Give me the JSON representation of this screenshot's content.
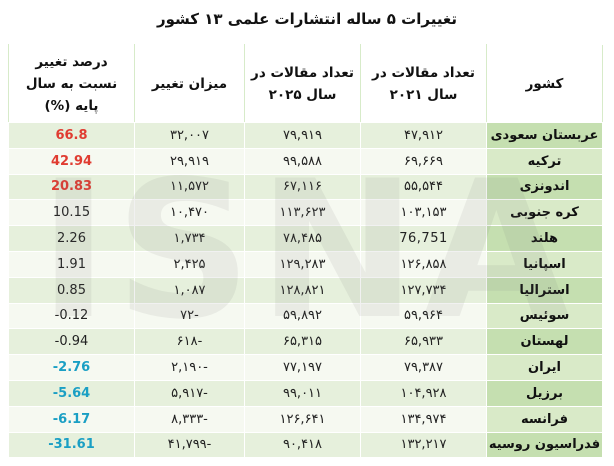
{
  "title": "تغییرات ۵ ساله انتشارات علمی ۱۳ کشور",
  "watermark": "ISNA",
  "headers": {
    "country": "کشور",
    "count_2021": "تعداد مقالات در سال ۲۰۲۱",
    "count_2025": "تعداد مقالات در سال ۲۰۲۵",
    "change": "میزان تغییر",
    "pct": "درصد تغییر نسبت به سال پایه (%)"
  },
  "colors": {
    "pct_positive_high": "#e03c31",
    "pct_negative_high": "#1a9fc4",
    "row_band": "#e6f0dc",
    "country_band": "#c5dfb0"
  },
  "rows": [
    {
      "country": "عربستان سعودی",
      "count_2021": "۴۷,۹۱۲",
      "count_2025": "۷۹,۹۱۹",
      "change": "۳۲,۰۰۷",
      "pct": "66.8",
      "pct_style": "red"
    },
    {
      "country": "ترکیه",
      "count_2021": "۶۹,۶۶۹",
      "count_2025": "۹۹,۵۸۸",
      "change": "۲۹,۹۱۹",
      "pct": "42.94",
      "pct_style": "red"
    },
    {
      "country": "اندونزی",
      "count_2021": "۵۵,۵۴۴",
      "count_2025": "۶۷,۱۱۶",
      "change": "۱۱,۵۷۲",
      "pct": "20.83",
      "pct_style": "red"
    },
    {
      "country": "کره جنوبی",
      "count_2021": "۱۰۳,۱۵۳",
      "count_2025": "۱۱۳,۶۲۳",
      "change": "۱۰,۴۷۰",
      "pct": "10.15",
      "pct_style": "dark"
    },
    {
      "country": "هلند",
      "count_2021": "76,751",
      "count_2025": "۷۸,۴۸۵",
      "change": "۱,۷۳۴",
      "pct": "2.26",
      "pct_style": "dark"
    },
    {
      "country": "اسپانیا",
      "count_2021": "۱۲۶,۸۵۸",
      "count_2025": "۱۲۹,۲۸۳",
      "change": "۲,۴۲۵",
      "pct": "1.91",
      "pct_style": "dark"
    },
    {
      "country": "استرالیا",
      "count_2021": "۱۲۷,۷۳۴",
      "count_2025": "۱۲۸,۸۲۱",
      "change": "۱,۰۸۷",
      "pct": "0.85",
      "pct_style": "dark"
    },
    {
      "country": "سوئیس",
      "count_2021": "۵۹,۹۶۴",
      "count_2025": "۵۹,۸۹۲",
      "change": "-۷۲",
      "pct": "-0.12",
      "pct_style": "dark"
    },
    {
      "country": "لهستان",
      "count_2021": "۶۵,۹۳۳",
      "count_2025": "۶۵,۳۱۵",
      "change": "-۶۱۸",
      "pct": "-0.94",
      "pct_style": "dark"
    },
    {
      "country": "ایران",
      "count_2021": "۷۹,۳۸۷",
      "count_2025": "۷۷,۱۹۷",
      "change": "-۲,۱۹۰",
      "pct": "-2.76",
      "pct_style": "blue"
    },
    {
      "country": "برزیل",
      "count_2021": "۱۰۴,۹۲۸",
      "count_2025": "۹۹,۰۱۱",
      "change": "-۵,۹۱۷",
      "pct": "-5.64",
      "pct_style": "blue"
    },
    {
      "country": "فرانسه",
      "count_2021": "۱۳۴,۹۷۴",
      "count_2025": "۱۲۶,۶۴۱",
      "change": "-۸,۳۳۳",
      "pct": "-6.17",
      "pct_style": "blue"
    },
    {
      "country": "فدراسیون روسیه",
      "count_2021": "۱۳۲,۲۱۷",
      "count_2025": "۹۰,۴۱۸",
      "change": "-۴۱,۷۹۹",
      "pct": "-31.61",
      "pct_style": "blue"
    }
  ]
}
